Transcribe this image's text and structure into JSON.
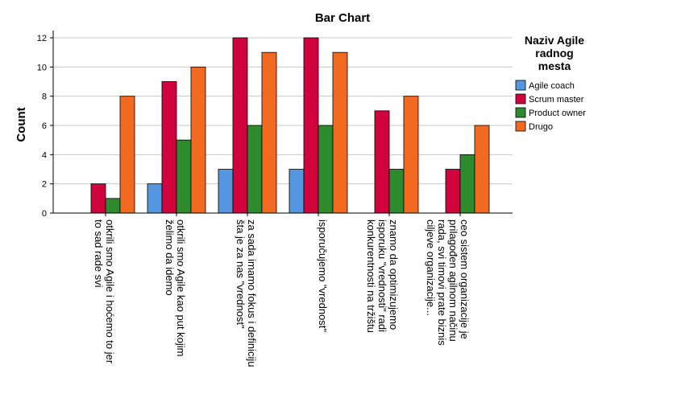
{
  "chart_data": {
    "type": "bar",
    "title": "Bar Chart",
    "y_label": "Count",
    "legend_title": "Naziv Agile\nradnog\nmesta",
    "categories": [
      "otkrili smo Agile i hoćemo to jer\nto sad rade svi",
      "otkrili smo Agile kao put kojim\nželimo da idemo",
      "za sada imamo fokus i definiciju\nšta je za nas \"vrednost\"",
      "isporučujemo \"vrednost\"",
      "znamo da optimizujemo\nisporuku \"vrednosti\" radi\nkonkurentnosti na tržištu",
      "ceo sistem organizacije je\nprilagođen agilnom načinu\nrada, svi timovi prate biznis\nciljeve organizacije..."
    ],
    "series": [
      {
        "name": "Agile coach",
        "color": "#5696e0",
        "values": [
          null,
          2,
          3,
          3,
          null,
          null
        ]
      },
      {
        "name": "Scrum master",
        "color": "#d0033d",
        "values": [
          2,
          9,
          12,
          12,
          7,
          3
        ]
      },
      {
        "name": "Product owner",
        "color": "#2d8a2d",
        "values": [
          1,
          5,
          6,
          6,
          3,
          4
        ]
      },
      {
        "name": "Drugo",
        "color": "#f26a22",
        "values": [
          8,
          10,
          11,
          11,
          8,
          6
        ]
      }
    ],
    "ylim": [
      0,
      12
    ],
    "yticks": [
      0,
      2,
      4,
      6,
      8,
      10,
      12
    ],
    "grid": true,
    "legend": "right"
  }
}
